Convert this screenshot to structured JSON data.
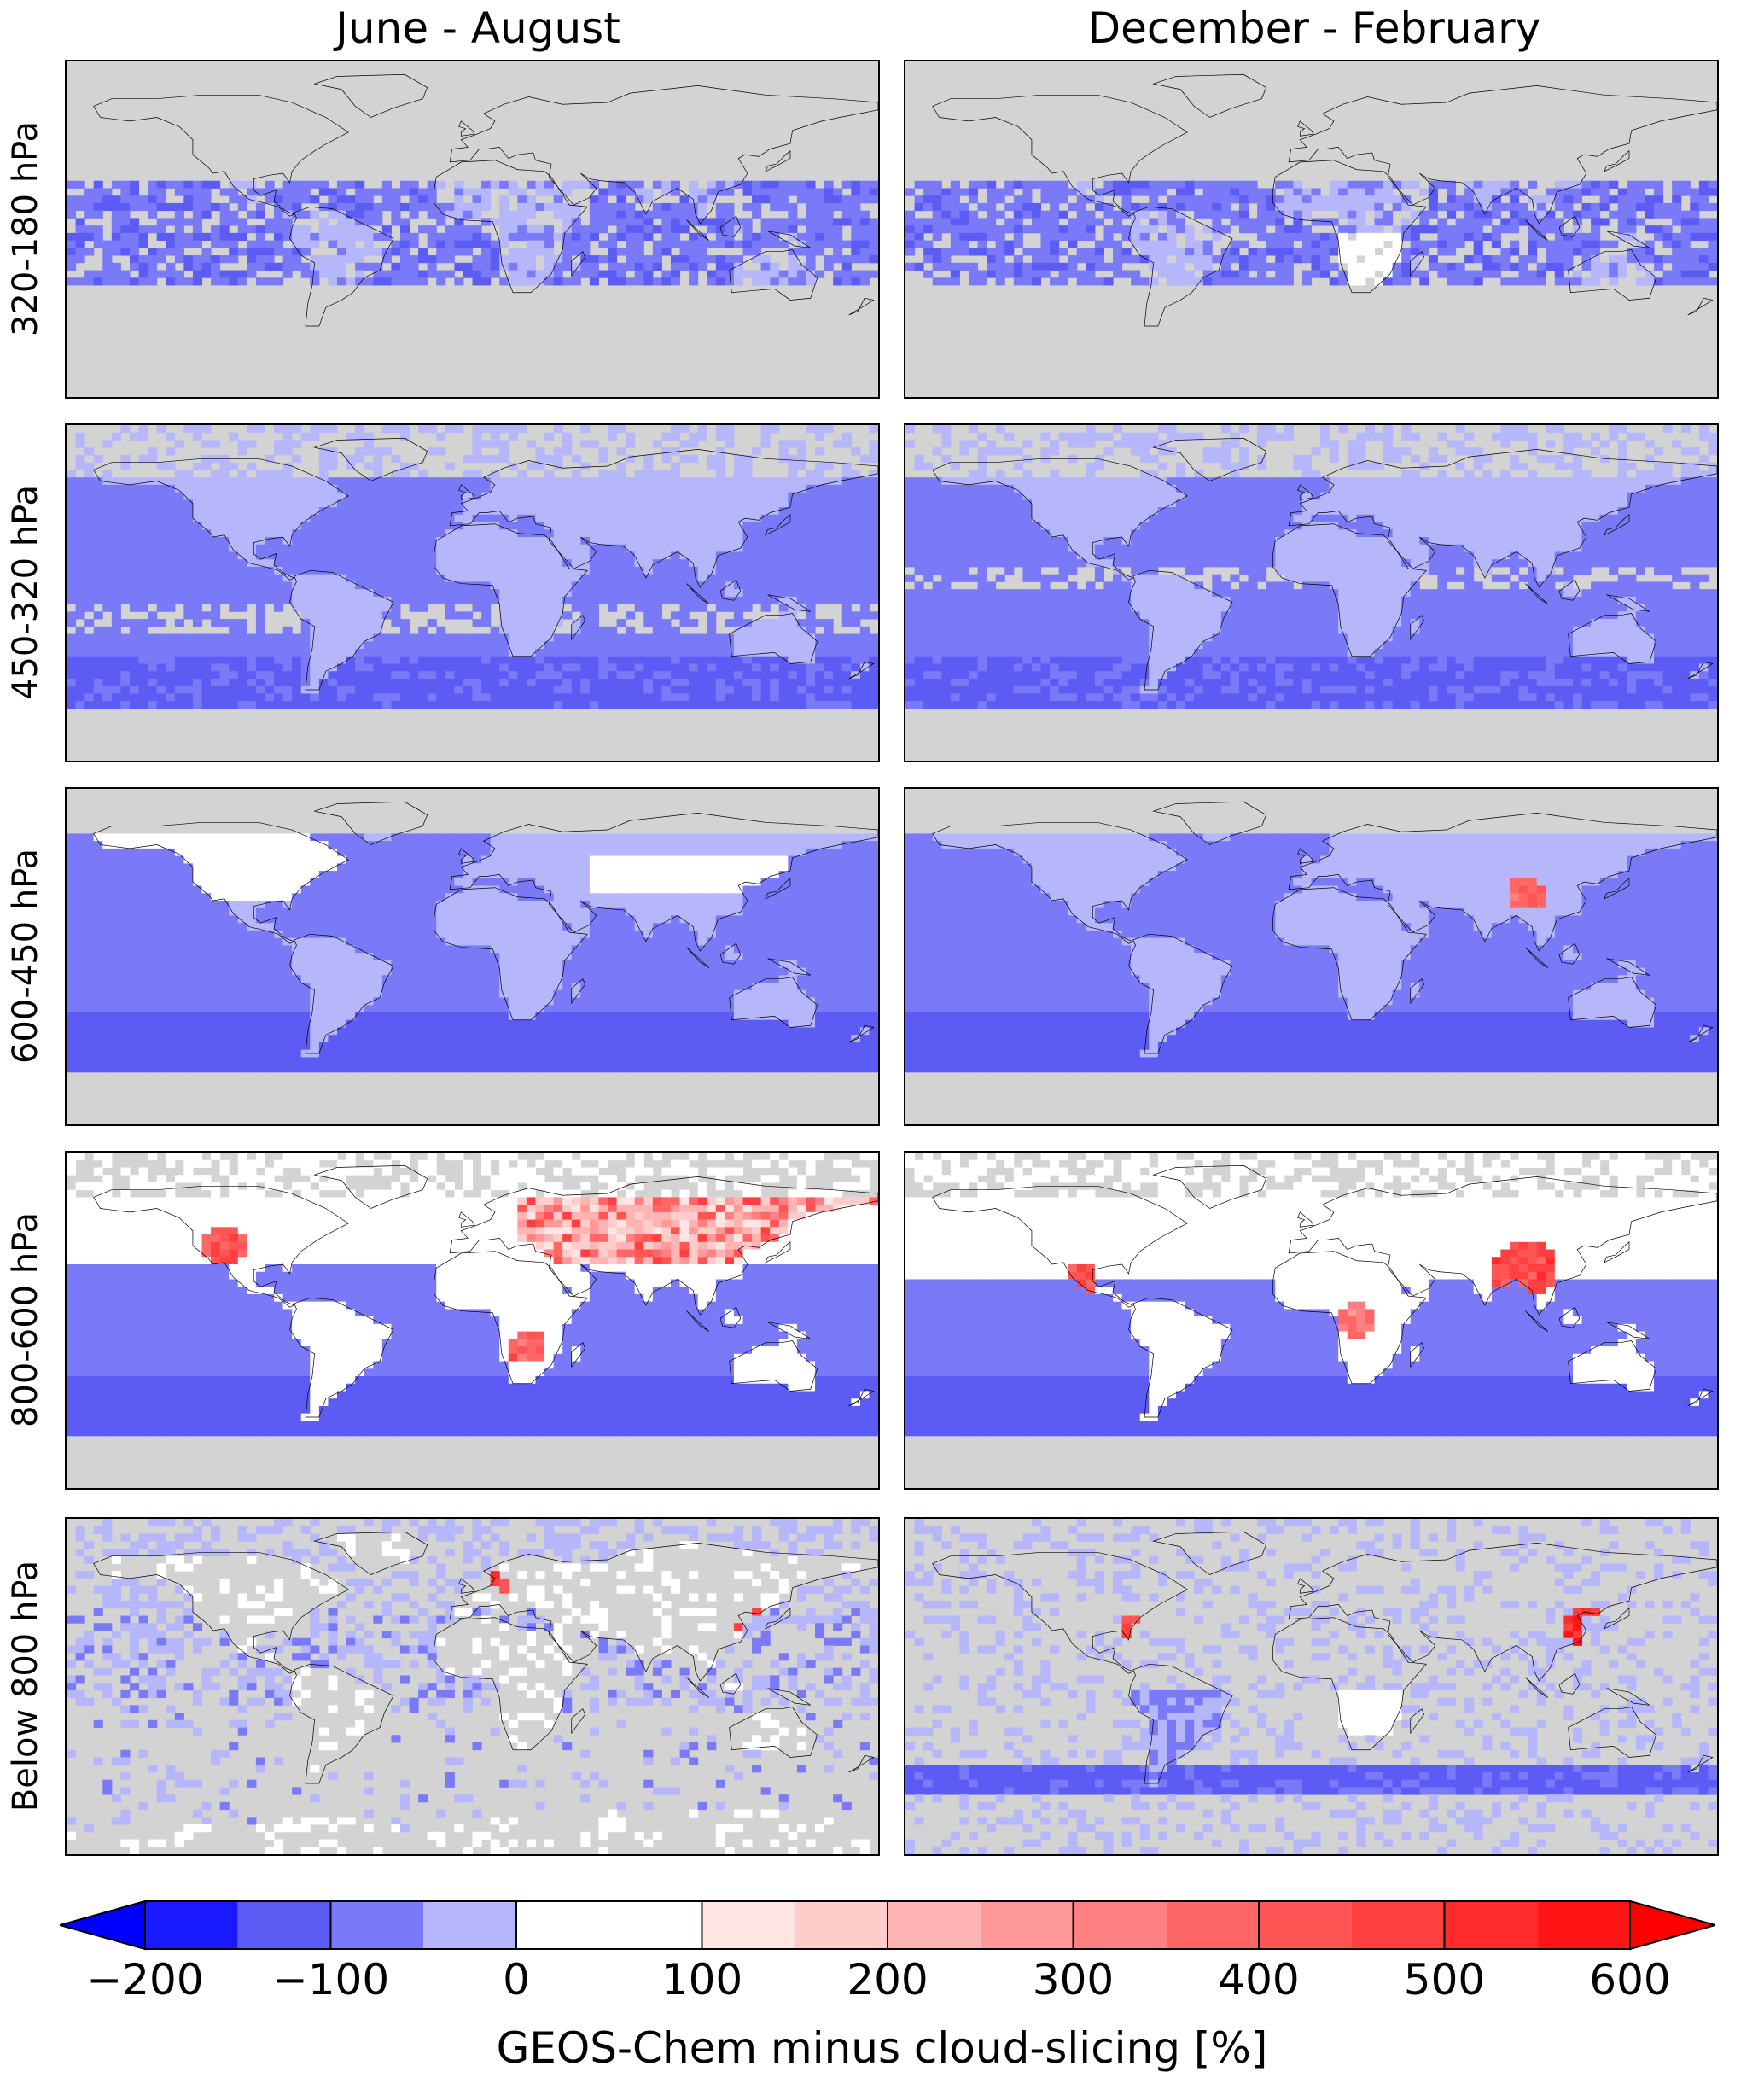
{
  "columns": [
    "June - August",
    "December - February"
  ],
  "rows": [
    "320-180 hPa",
    "450-320 hPa",
    "600-450 hPa",
    "800-600 hPa",
    "Below 800 hPa"
  ],
  "colorbar": {
    "label": "GEOS-Chem minus cloud-slicing [%]",
    "tick_labels": [
      "−200",
      "−100",
      "0",
      "100",
      "200",
      "300",
      "400",
      "500",
      "600"
    ],
    "tick_values": [
      -200,
      -100,
      0,
      100,
      200,
      300,
      400,
      500,
      600
    ],
    "min": -200,
    "max": 600,
    "extend": "both",
    "boundaries": [
      -200,
      -150,
      -100,
      -50,
      0,
      50,
      100,
      150,
      200,
      250,
      300,
      350,
      400,
      450,
      500,
      550,
      600
    ],
    "colors": [
      "#1a1aff",
      "#5c5cf5",
      "#7a7af8",
      "#b6b6fb",
      "#ffffff",
      "#ffffff",
      "#ffe4e4",
      "#ffcccc",
      "#ffb3b3",
      "#ff9999",
      "#ff8080",
      "#ff6666",
      "#ff5555",
      "#ff4040",
      "#ff2a2a",
      "#ff1515"
    ],
    "under_color": "#0000ff",
    "over_color": "#ff0000",
    "missing_color": "#d3d3d3"
  },
  "chart_data": {
    "type": "heatmap",
    "title": "",
    "panel_grid": [
      "320-180 hPa",
      "450-320 hPa",
      "600-450 hPa",
      "800-600 hPa",
      "Below 800 hPa"
    ],
    "panels": [
      {
        "row": "320-180 hPa",
        "column": "June - August",
        "pattern": "tropical band negative (-100 to -50) over oceans 30S-25N; mostly missing elsewhere"
      },
      {
        "row": "320-180 hPa",
        "column": "December - February",
        "pattern": "tropical band negative, strongest over Maritime Continent; near 0 over southern Africa"
      },
      {
        "row": "450-320 hPa",
        "column": "June - August",
        "pattern": "widespread negative (-100 to -50), southern ocean strongest; near 0 over land"
      },
      {
        "row": "450-320 hPa",
        "column": "December - February",
        "pattern": "widespread negative; near 0 over continents"
      },
      {
        "row": "600-450 hPa",
        "column": "June - August",
        "pattern": "negative over oceans; positive (50-150) over North America and central Asia"
      },
      {
        "row": "600-450 hPa",
        "column": "December - February",
        "pattern": "negative over oceans; positive (300-500) over Tibet/China"
      },
      {
        "row": "800-600 hPa",
        "column": "June - August",
        "pattern": "positive (200-500) over western US, Eurasia, southern Africa; negative over southern oceans"
      },
      {
        "row": "800-600 hPa",
        "column": "December - February",
        "pattern": "positive (300-600) over India/China, Mexico, central Africa; negative over oceans"
      },
      {
        "row": "Below 800 hPa",
        "column": "June - August",
        "pattern": "mostly missing; coastal positives (400-600) in Europe, East Asia, US east coast"
      },
      {
        "row": "Below 800 hPa",
        "column": "December - February",
        "pattern": "southern ocean band negative; strong positives (500+) over East Asia and US east coast"
      }
    ]
  }
}
